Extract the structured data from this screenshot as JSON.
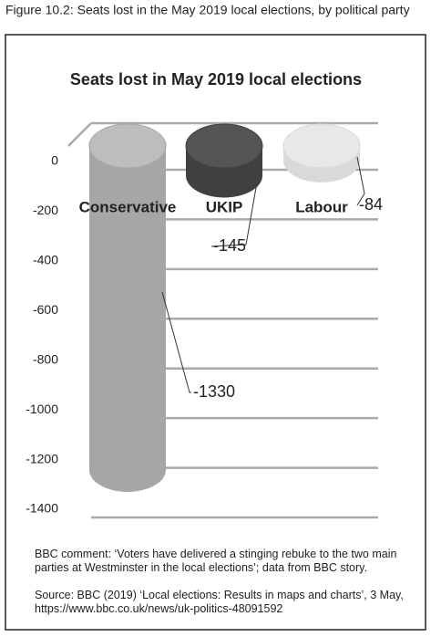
{
  "caption": "Figure 10.2: Seats lost in the May 2019 local elections, by political party",
  "chart_data": {
    "type": "bar",
    "title": "Seats lost in May 2019 local elections",
    "categories": [
      "Conservative",
      "UKIP",
      "Labour"
    ],
    "values": [
      -1330,
      -145,
      -84
    ],
    "colors": [
      "#a6a6a6",
      "#404040",
      "#d9d9d9"
    ],
    "ylim": [
      -1400,
      0
    ],
    "yticks": [
      0,
      -200,
      -400,
      -600,
      -800,
      -1000,
      -1200,
      -1400
    ],
    "grid": true
  },
  "comment": "BBC comment: ‘Voters have delivered a stinging rebuke to the two main parties at Westminster in the local elections’; data from BBC story.",
  "source": "Source: BBC (2019) ‘Local elections: Results in maps and charts’, 3 May, https://www.bbc.co.uk/news/uk-politics-48091592"
}
